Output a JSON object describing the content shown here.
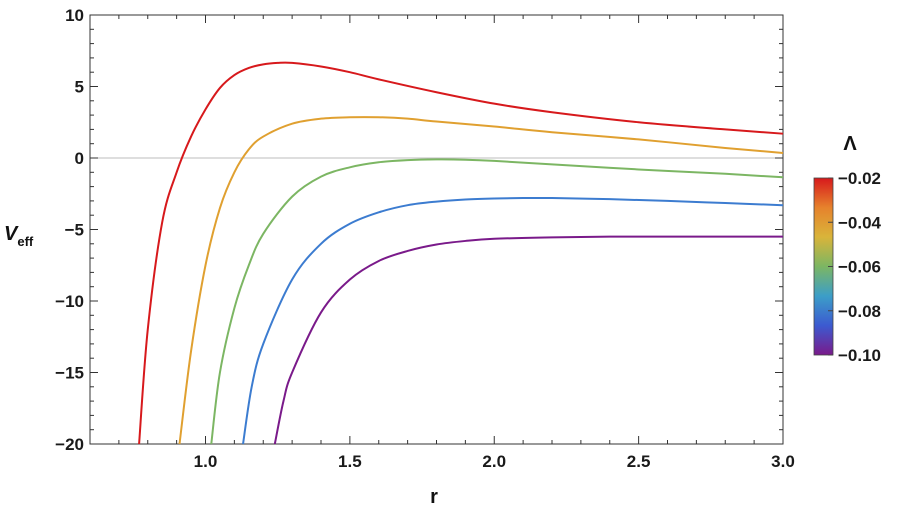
{
  "chart_data": {
    "type": "line",
    "xlabel": "r",
    "ylabel": "V",
    "ylabel_sub": "eff",
    "xlim": [
      0.6,
      3.0
    ],
    "ylim": [
      -20,
      10
    ],
    "xticks": [
      1.0,
      1.5,
      2.0,
      2.5,
      3.0
    ],
    "xtick_labels": [
      "1.0",
      "1.5",
      "2.0",
      "2.5",
      "3.0"
    ],
    "yticks": [
      10,
      5,
      0,
      -5,
      -10,
      -15,
      -20
    ],
    "ytick_labels": [
      "10",
      "5",
      "0",
      "−5",
      "−10",
      "−15",
      "−20"
    ],
    "reference_line_y": 0,
    "series": [
      {
        "color": "#d7191c",
        "points": [
          [
            0.77,
            -20
          ],
          [
            0.8,
            -12
          ],
          [
            0.85,
            -4.5
          ],
          [
            0.9,
            -1
          ],
          [
            0.95,
            1.5
          ],
          [
            1.0,
            3.4
          ],
          [
            1.05,
            4.9
          ],
          [
            1.1,
            5.8
          ],
          [
            1.15,
            6.3
          ],
          [
            1.2,
            6.55
          ],
          [
            1.25,
            6.65
          ],
          [
            1.3,
            6.65
          ],
          [
            1.4,
            6.4
          ],
          [
            1.5,
            6.0
          ],
          [
            1.6,
            5.5
          ],
          [
            1.8,
            4.6
          ],
          [
            2.0,
            3.8
          ],
          [
            2.2,
            3.2
          ],
          [
            2.5,
            2.5
          ],
          [
            2.8,
            2.0
          ],
          [
            3.0,
            1.7
          ]
        ]
      },
      {
        "color": "#e0a030",
        "points": [
          [
            0.91,
            -20
          ],
          [
            0.95,
            -13.5
          ],
          [
            1.0,
            -7.5
          ],
          [
            1.05,
            -3.5
          ],
          [
            1.1,
            -1.0
          ],
          [
            1.15,
            0.6
          ],
          [
            1.2,
            1.5
          ],
          [
            1.3,
            2.4
          ],
          [
            1.4,
            2.75
          ],
          [
            1.5,
            2.85
          ],
          [
            1.6,
            2.85
          ],
          [
            1.7,
            2.75
          ],
          [
            1.8,
            2.55
          ],
          [
            2.0,
            2.2
          ],
          [
            2.2,
            1.8
          ],
          [
            2.5,
            1.3
          ],
          [
            2.8,
            0.7
          ],
          [
            3.0,
            0.35
          ]
        ]
      },
      {
        "color": "#7cb663",
        "points": [
          [
            1.02,
            -20
          ],
          [
            1.05,
            -15
          ],
          [
            1.1,
            -10.5
          ],
          [
            1.15,
            -7.5
          ],
          [
            1.2,
            -5.3
          ],
          [
            1.3,
            -2.7
          ],
          [
            1.4,
            -1.3
          ],
          [
            1.5,
            -0.65
          ],
          [
            1.6,
            -0.3
          ],
          [
            1.7,
            -0.15
          ],
          [
            1.8,
            -0.1
          ],
          [
            1.9,
            -0.12
          ],
          [
            2.0,
            -0.2
          ],
          [
            2.2,
            -0.45
          ],
          [
            2.5,
            -0.8
          ],
          [
            2.8,
            -1.1
          ],
          [
            3.0,
            -1.35
          ]
        ]
      },
      {
        "color": "#3c7cd0",
        "points": [
          [
            1.13,
            -20
          ],
          [
            1.16,
            -16
          ],
          [
            1.2,
            -13
          ],
          [
            1.3,
            -8.5
          ],
          [
            1.4,
            -6.0
          ],
          [
            1.5,
            -4.6
          ],
          [
            1.6,
            -3.8
          ],
          [
            1.7,
            -3.3
          ],
          [
            1.8,
            -3.05
          ],
          [
            1.9,
            -2.9
          ],
          [
            2.0,
            -2.83
          ],
          [
            2.1,
            -2.8
          ],
          [
            2.2,
            -2.8
          ],
          [
            2.4,
            -2.88
          ],
          [
            2.6,
            -3.0
          ],
          [
            2.8,
            -3.15
          ],
          [
            3.0,
            -3.3
          ]
        ]
      },
      {
        "color": "#7a1a8a",
        "points": [
          [
            1.24,
            -20
          ],
          [
            1.27,
            -17
          ],
          [
            1.3,
            -15
          ],
          [
            1.4,
            -10.8
          ],
          [
            1.5,
            -8.5
          ],
          [
            1.6,
            -7.2
          ],
          [
            1.7,
            -6.5
          ],
          [
            1.8,
            -6.05
          ],
          [
            1.9,
            -5.8
          ],
          [
            2.0,
            -5.65
          ],
          [
            2.2,
            -5.55
          ],
          [
            2.4,
            -5.5
          ],
          [
            2.6,
            -5.5
          ],
          [
            2.8,
            -5.5
          ],
          [
            3.0,
            -5.5
          ]
        ]
      }
    ],
    "colorbar": {
      "title": "Λ",
      "range": [
        -0.1,
        -0.02
      ],
      "ticks": [
        -0.02,
        -0.04,
        -0.06,
        -0.08,
        -0.1
      ],
      "tick_labels": [
        "−0.02",
        "−0.04",
        "−0.06",
        "−0.08",
        "−0.10"
      ],
      "stops": [
        "#7a1a8a",
        "#3c5ad0",
        "#3c9ec8",
        "#7cb663",
        "#d9b43a",
        "#e6822c",
        "#d7191c"
      ]
    }
  }
}
